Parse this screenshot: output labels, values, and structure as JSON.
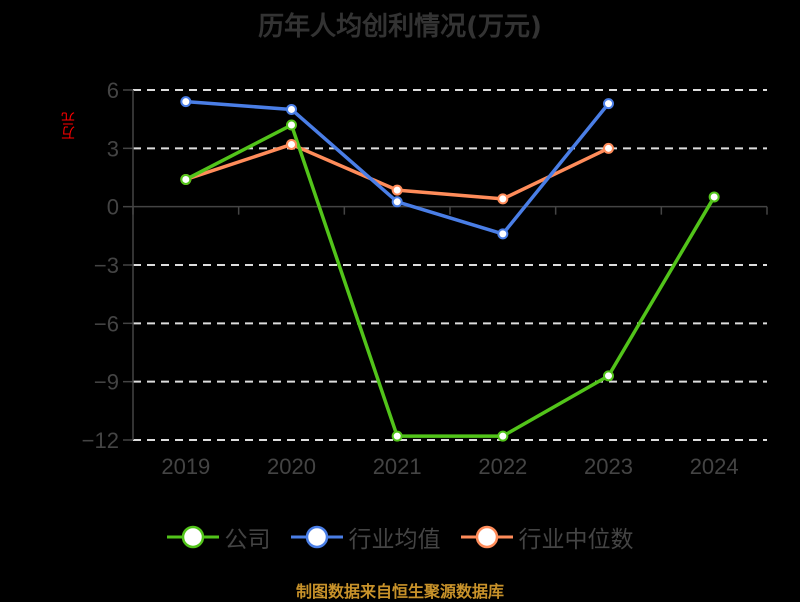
{
  "title": "历年人均创利情况(万元)",
  "y_unit": "万元",
  "legend": [
    {
      "label": "公司",
      "color": "#52c41a"
    },
    {
      "label": "行业均值",
      "color": "#4a7ee6"
    },
    {
      "label": "行业中位数",
      "color": "#ff8c5a"
    }
  ],
  "source": "制图数据来自恒生聚源数据库",
  "chart_data": {
    "type": "line",
    "title": "历年人均创利情况(万元)",
    "xlabel": "",
    "ylabel": "万元",
    "categories": [
      "2019",
      "2020",
      "2021",
      "2022",
      "2023",
      "2024"
    ],
    "ylim": [
      -12,
      6
    ],
    "yticks": [
      6,
      3,
      0,
      -3,
      -6,
      -9,
      -12
    ],
    "grid": "horizontal dashed",
    "legend_position": "bottom",
    "series": [
      {
        "name": "公司",
        "color": "#52c41a",
        "values": [
          1.4,
          4.2,
          -11.8,
          -11.8,
          -8.7,
          0.5
        ]
      },
      {
        "name": "行业均值",
        "color": "#4a7ee6",
        "values": [
          5.4,
          5.0,
          0.25,
          -1.4,
          5.3,
          null
        ]
      },
      {
        "name": "行业中位数",
        "color": "#ff8c5a",
        "values": [
          1.4,
          3.2,
          0.85,
          0.4,
          3.0,
          null
        ]
      }
    ]
  }
}
